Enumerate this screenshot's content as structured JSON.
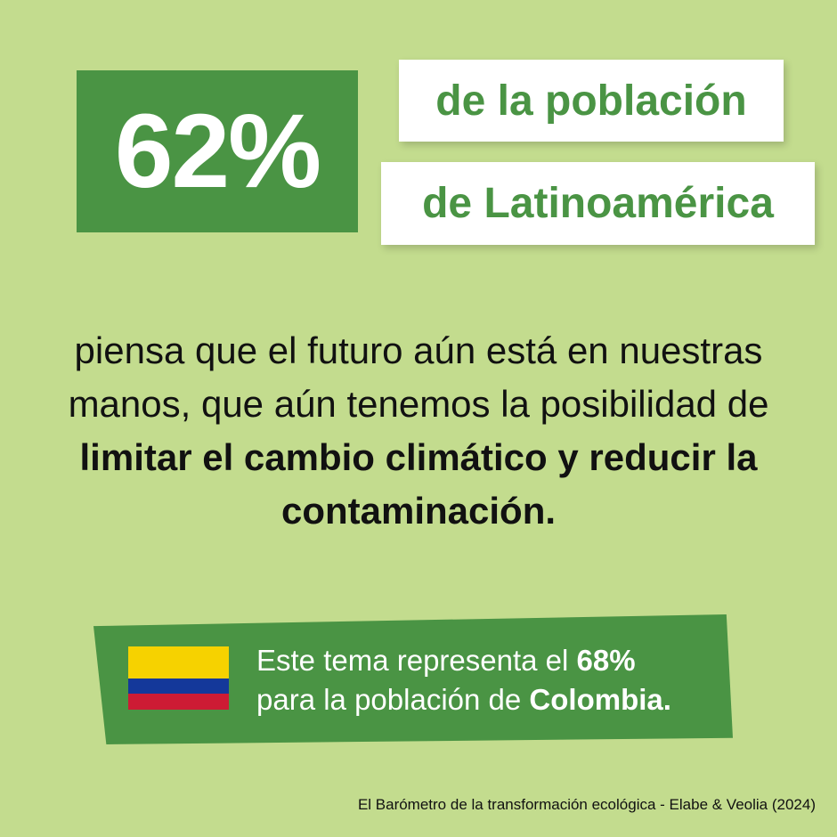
{
  "stat": {
    "value": "62%",
    "line1": "de la población",
    "line2": "de Latinoamérica"
  },
  "statement": {
    "part1": "piensa que el futuro aún está en nuestras manos, que aún tenemos la posibilidad de",
    "bold": "limitar el cambio climático y reducir la contaminación."
  },
  "country_banner": {
    "flag_icon": "colombia-flag-icon",
    "flag_colors": [
      "#f6d200",
      "#14389a",
      "#cd1b34"
    ],
    "text1": "Este tema representa el",
    "value": "68%",
    "text2": "para la población de",
    "country": "Colombia."
  },
  "source": "El Barómetro de la transformación ecológica - Elabe & Veolia (2024)",
  "colors": {
    "background": "#c3dc8e",
    "accent_green": "#4a9444",
    "white": "#ffffff"
  }
}
